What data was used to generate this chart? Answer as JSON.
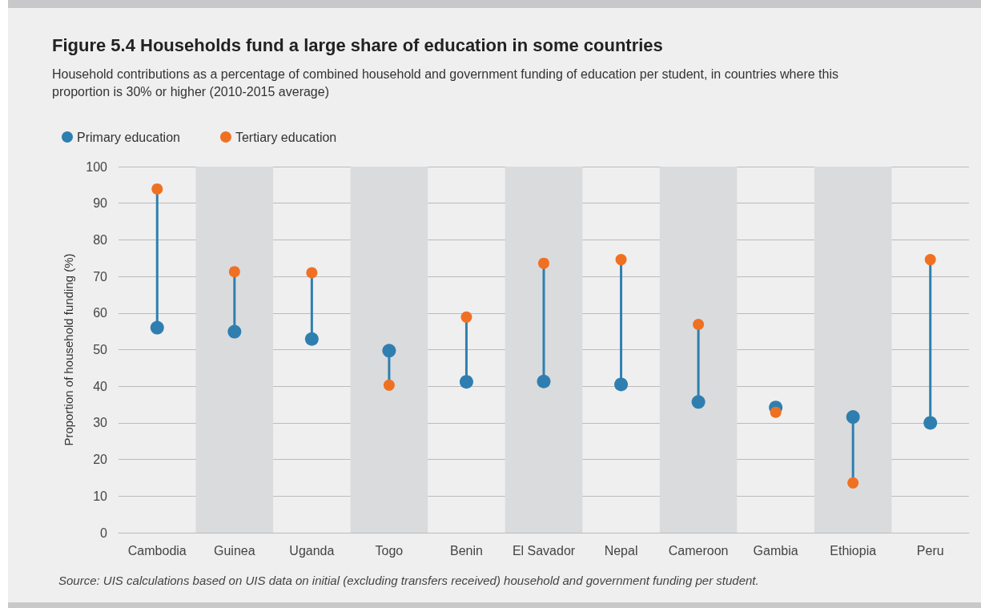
{
  "chart_data": {
    "type": "scatter",
    "title": "Figure 5.4 Households fund a large share of education in some countries",
    "subtitle": "Household contributions as a percentage of combined household and government funding of education per student, in countries where this proportion is 30% or higher (2010-2015 average)",
    "ylabel": "Proportion of household funding (%)",
    "annotations": [
      "Source: UIS calculations based on UIS data on initial (excluding transfers received) household and government funding per student."
    ],
    "categories": [
      "Cambodia",
      "Guinea",
      "Uganda",
      "Togo",
      "Benin",
      "El Savador",
      "Nepal",
      "Cameroon",
      "Gambia",
      "Ethiopia",
      "Peru"
    ],
    "series": [
      {
        "name": "Primary education",
        "color": "#2e7fb0",
        "values": [
          56.0,
          54.9,
          52.9,
          49.7,
          41.2,
          41.3,
          40.5,
          35.7,
          34.2,
          31.6,
          30.0
        ]
      },
      {
        "name": "Tertiary education",
        "color": "#f07022",
        "values": [
          93.9,
          71.3,
          71.0,
          40.3,
          58.9,
          73.6,
          74.6,
          56.9,
          32.9,
          13.6,
          74.6
        ]
      }
    ],
    "ylim": [
      0,
      100
    ],
    "yticks": [
      0,
      10,
      20,
      30,
      40,
      50,
      60,
      70,
      80,
      90,
      100
    ],
    "grid": "y",
    "legend": "top left",
    "marker": "circle"
  }
}
